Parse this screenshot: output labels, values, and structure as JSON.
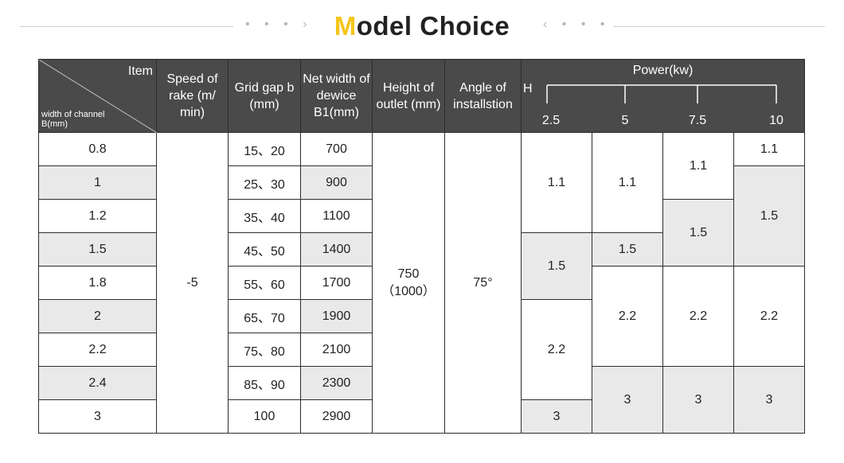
{
  "title": {
    "first_letter": "M",
    "rest": "odel Choice"
  },
  "decor": {
    "left": "• • • ›",
    "right": "‹ • • •"
  },
  "header": {
    "item": "Item",
    "channel_width": "width of channel B(mm)",
    "rake_speed": "Speed of rake (m/ min)",
    "grid_gap": "Grid gap b (mm)",
    "net_width": "Net width of dewice B1(mm)",
    "outlet_height": "Height of outlet (mm)",
    "angle": "Angle of installstion",
    "power": "Power(kw)",
    "h_label": "H",
    "power_values": [
      "2.5",
      "5",
      "7.5",
      "10"
    ]
  },
  "rows": [
    {
      "width": "0.8",
      "grid_gap": "15、20",
      "net_width": "700"
    },
    {
      "width": "1",
      "grid_gap": "25、30",
      "net_width": "900"
    },
    {
      "width": "1.2",
      "grid_gap": "35、40",
      "net_width": "1100"
    },
    {
      "width": "1.5",
      "grid_gap": "45、50",
      "net_width": "1400"
    },
    {
      "width": "1.8",
      "grid_gap": "55、60",
      "net_width": "1700"
    },
    {
      "width": "2",
      "grid_gap": "65、70",
      "net_width": "1900"
    },
    {
      "width": "2.2",
      "grid_gap": "75、80",
      "net_width": "2100"
    },
    {
      "width": "2.4",
      "grid_gap": "85、90",
      "net_width": "2300"
    },
    {
      "width": "3",
      "grid_gap": "100",
      "net_width": "2900"
    }
  ],
  "merged": {
    "rake_speed": "-5",
    "outlet_height": "750\n（1000）",
    "angle": "75°"
  },
  "power_cells": {
    "p25": [
      "1.1",
      "1.5",
      "2.2",
      "3"
    ],
    "p5": [
      "1.1",
      "1.5",
      "2.2",
      "3"
    ],
    "p75": [
      "1.1",
      "1.5",
      "2.2",
      "3"
    ],
    "p10": [
      "1.1",
      "1.5",
      "2.2",
      "3"
    ]
  }
}
